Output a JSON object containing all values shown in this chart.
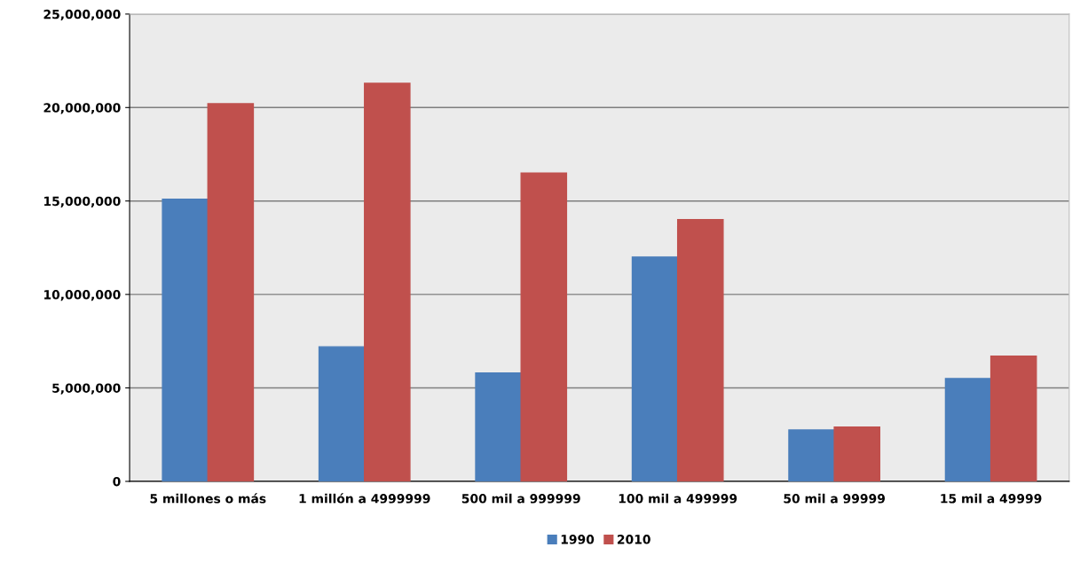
{
  "chart_data": {
    "type": "bar",
    "categories": [
      "5 millones o más",
      "1 millón a 4999999",
      "500 mil a 999999",
      "100 mil a 499999",
      "50 mil a 99999",
      "15 mil a 49999"
    ],
    "series": [
      {
        "name": "1990",
        "color": "#4a7ebb",
        "values": [
          15100000,
          7200000,
          5800000,
          12000000,
          2750000,
          5500000
        ]
      },
      {
        "name": "2010",
        "color": "#c0504d",
        "values": [
          20200000,
          21300000,
          16500000,
          14000000,
          2900000,
          6700000
        ]
      }
    ],
    "ylim": [
      0,
      25000000
    ],
    "yticks": [
      {
        "value": 0,
        "label": "0"
      },
      {
        "value": 5000000,
        "label": "5,000,000"
      },
      {
        "value": 10000000,
        "label": "10,000,000"
      },
      {
        "value": 15000000,
        "label": "15,000,000"
      },
      {
        "value": 20000000,
        "label": "20,000,000"
      },
      {
        "value": 25000000,
        "label": "25,000,000"
      }
    ],
    "grid": "y",
    "legend": "bottom"
  }
}
